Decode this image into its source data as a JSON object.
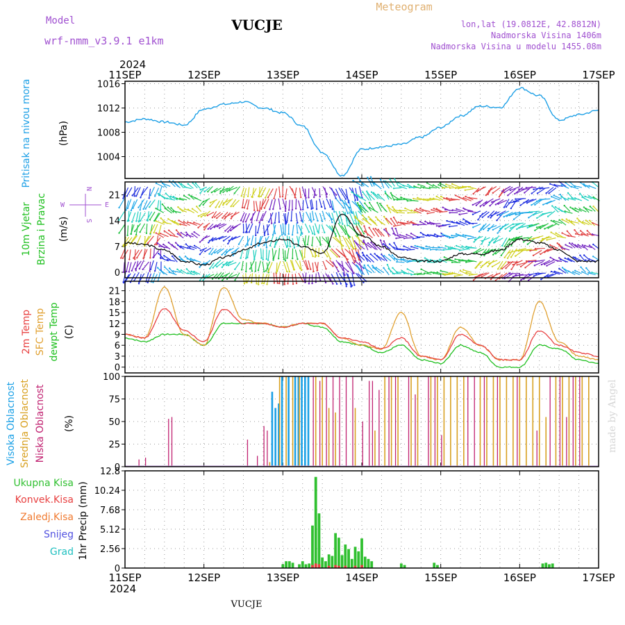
{
  "header": {
    "model_label": "Model",
    "model_name": "wrf-nmm_v3.9.1  e1km",
    "station": "VUCJE",
    "product": "Meteogram",
    "lonlat": "lon,lat (19.0812E, 42.8812N)",
    "altitude": "Nadmorska Visina 1406m",
    "model_altitude": "Nadmorska Visina u modelu 1455.08m",
    "footer_station": "VUCJE",
    "credit": "made by Angel"
  },
  "time_axis": {
    "year": "2024",
    "days": [
      "11SEP",
      "12SEP",
      "13SEP",
      "14SEP",
      "15SEP",
      "16SEP",
      "17SEP"
    ],
    "hours_per_day": 24,
    "total_hours": 144
  },
  "colors": {
    "pressure": "#1ea0e6",
    "wind_black": "#000000",
    "temp2m": "#e84040",
    "sfc_temp": "#e0a030",
    "dewpt": "#20c020",
    "high_cloud": "#1aa0e6",
    "mid_cloud": "#d8a020",
    "low_cloud": "#c02070",
    "total_precip": "#30c030",
    "conv_precip": "#e84040",
    "frozen_precip": "#f07a30",
    "snow": "#5050e0",
    "graupel": "#20c0c0",
    "wind_compass": "#a050d0"
  },
  "chart_data": [
    {
      "type": "line",
      "panel": "pressure",
      "ylabel_1": "Pritisak na nivou mora",
      "ylabel_2": "(hPa)",
      "ylim": [
        1000.4,
        1016.4
      ],
      "yticks": [
        "1004",
        "1008",
        "1012",
        "1016"
      ],
      "grid": true,
      "x_hours": [
        0,
        6,
        12,
        18,
        24,
        30,
        36,
        42,
        48,
        54,
        60,
        66,
        72,
        78,
        84,
        90,
        96,
        102,
        108,
        114,
        120,
        126,
        132,
        138,
        144
      ],
      "series": [
        {
          "values": [
            1009.7,
            1010.2,
            1009.7,
            1009.2,
            1011.8,
            1012.6,
            1013.0,
            1012.0,
            1011.2,
            1009.0,
            1004.7,
            1000.9,
            1005.2,
            1005.6,
            1006.0,
            1007.2,
            1008.8,
            1010.7,
            1012.3,
            1012.1,
            1015.3,
            1014.0,
            1010.0,
            1010.9,
            1011.6
          ]
        }
      ]
    },
    {
      "type": "line",
      "panel": "wind",
      "ylabel_1": "10m Vjetar",
      "ylabel_2": "Brzina i Pravac",
      "ylabel_3": "(m/s)",
      "compass": {
        "north": "N",
        "south": "S",
        "west": "W",
        "east": "E"
      },
      "ylim": [
        -1.5,
        24.5
      ],
      "yticks": [
        "0",
        "7",
        "14",
        "21"
      ],
      "grid": true,
      "x_hours": [
        0,
        6,
        12,
        18,
        24,
        30,
        36,
        42,
        48,
        54,
        60,
        66,
        72,
        78,
        84,
        90,
        96,
        102,
        108,
        114,
        120,
        126,
        132,
        138,
        144
      ],
      "series": [
        {
          "name": "speed",
          "values": [
            8,
            7.5,
            6,
            3,
            2,
            4,
            6,
            8,
            9,
            7,
            5,
            16,
            10,
            7,
            4,
            3,
            3,
            5,
            5,
            6,
            9,
            8,
            6,
            3,
            3
          ]
        }
      ]
    },
    {
      "type": "line",
      "panel": "temperature",
      "ylabel_1": "2m Temp",
      "ylabel_2": "SFC Temp",
      "ylabel_3": "dewpt Temp",
      "ylabel_4": "(C)",
      "ylim": [
        -1.6,
        23.6
      ],
      "yticks": [
        "0",
        "3",
        "6",
        "9",
        "12",
        "15",
        "18",
        "21"
      ],
      "grid": true,
      "x_hours": [
        0,
        6,
        12,
        18,
        24,
        30,
        36,
        42,
        48,
        54,
        60,
        66,
        72,
        78,
        84,
        90,
        96,
        102,
        108,
        114,
        120,
        126,
        132,
        138,
        144
      ],
      "series": [
        {
          "name": "2m Temp",
          "values": [
            9,
            8,
            16,
            10,
            7,
            16,
            12,
            12,
            11,
            12,
            12,
            8,
            7,
            5,
            8,
            3,
            2,
            9,
            6,
            2,
            2,
            10,
            6,
            4,
            3
          ]
        },
        {
          "name": "SFC Temp",
          "values": [
            9,
            8,
            22,
            9,
            6,
            22,
            13,
            12,
            11,
            12,
            12,
            8,
            6,
            5,
            15,
            3,
            2,
            11,
            6,
            2,
            2,
            18,
            7,
            3,
            2
          ]
        },
        {
          "name": "dewpt Temp",
          "values": [
            8,
            7,
            9,
            9,
            6,
            12,
            12,
            12,
            11,
            12,
            11,
            7,
            6,
            4,
            6,
            2,
            1,
            6,
            4,
            0,
            0,
            6,
            5,
            2,
            1
          ]
        }
      ]
    },
    {
      "type": "bar",
      "panel": "cloud",
      "ylabel_1": "Visoka Oblacnost",
      "ylabel_2": "Srednja Oblacnost",
      "ylabel_3": "Niska Oblacnost",
      "ylabel_4": "(%)",
      "ylim": [
        0,
        100
      ],
      "yticks": [
        "0",
        "25",
        "50",
        "75",
        "100"
      ],
      "grid": true,
      "series": [
        {
          "name": "Visoka Oblacnost",
          "hours": [
            45,
            46,
            47,
            48,
            50,
            52,
            53,
            54,
            55,
            56
          ],
          "values": [
            83,
            65,
            70,
            100,
            100,
            100,
            100,
            100,
            100,
            100
          ]
        },
        {
          "name": "Srednja Oblacnost",
          "hours": [
            44,
            47,
            49,
            51,
            53,
            58,
            60,
            62,
            64,
            70,
            76,
            79,
            81,
            83,
            87,
            89,
            93,
            95,
            97,
            99,
            101,
            103,
            108,
            110,
            112,
            114,
            116,
            118,
            120,
            122,
            124,
            126,
            128,
            131,
            133,
            135,
            137,
            139,
            141
          ],
          "values": [
            5,
            100,
            100,
            100,
            100,
            100,
            100,
            65,
            60,
            65,
            40,
            100,
            100,
            100,
            100,
            100,
            100,
            100,
            100,
            100,
            100,
            100,
            100,
            100,
            100,
            100,
            100,
            100,
            100,
            100,
            100,
            100,
            55,
            100,
            100,
            100,
            100,
            100,
            100
          ]
        },
        {
          "name": "Niska Oblacnost",
          "hours": [
            4,
            6,
            13,
            14,
            37,
            40,
            42,
            43,
            57,
            59,
            61,
            63,
            65,
            67,
            69,
            72,
            74,
            75,
            77,
            80,
            82,
            86,
            88,
            92,
            94,
            96,
            104,
            106,
            109,
            113,
            119,
            125,
            129,
            132,
            134,
            136,
            138
          ],
          "values": [
            8,
            10,
            53,
            55,
            30,
            12,
            45,
            40,
            100,
            95,
            100,
            100,
            100,
            100,
            100,
            50,
            95,
            95,
            85,
            100,
            100,
            100,
            80,
            100,
            100,
            35,
            100,
            100,
            100,
            100,
            100,
            40,
            100,
            100,
            55,
            100,
            100
          ]
        }
      ]
    },
    {
      "type": "bar",
      "panel": "precipitation",
      "ylabel_1": "1hr Precip (mm)",
      "legend": [
        "Ukupna Kisa",
        "Konvek.Kisa",
        "Zaledj.Kisa",
        "Snijeg",
        "Grad"
      ],
      "ylim": [
        0,
        12.8
      ],
      "yticks": [
        "0",
        "2.56",
        "5.12",
        "7.68",
        "10.24",
        "12.8"
      ],
      "grid": true,
      "series": [
        {
          "name": "Ukupna Kisa",
          "hours": [
            48,
            49,
            50,
            51,
            53,
            54,
            55,
            56,
            57,
            58,
            59,
            60,
            61,
            62,
            63,
            64,
            65,
            66,
            67,
            68,
            69,
            70,
            71,
            72,
            73,
            74,
            75,
            84,
            85,
            94,
            95,
            127,
            128,
            129,
            130
          ],
          "values": [
            0.5,
            0.9,
            0.9,
            0.7,
            0.5,
            0.9,
            0.5,
            0.6,
            5.6,
            12.0,
            7.2,
            1.4,
            0.9,
            1.8,
            1.6,
            4.6,
            4.0,
            1.7,
            3.1,
            2.5,
            1.2,
            2.8,
            2.2,
            3.9,
            1.5,
            1.2,
            0.9,
            0.6,
            0.4,
            0.7,
            0.4,
            0.6,
            0.7,
            0.5,
            0.6
          ]
        },
        {
          "name": "Konvek.Kisa",
          "hours": [
            57,
            58,
            59,
            62,
            64,
            65,
            67,
            70,
            72
          ],
          "values": [
            0.4,
            0.6,
            0.5,
            0.3,
            0.4,
            0.3,
            0.3,
            0.3,
            0.4
          ]
        }
      ]
    }
  ]
}
